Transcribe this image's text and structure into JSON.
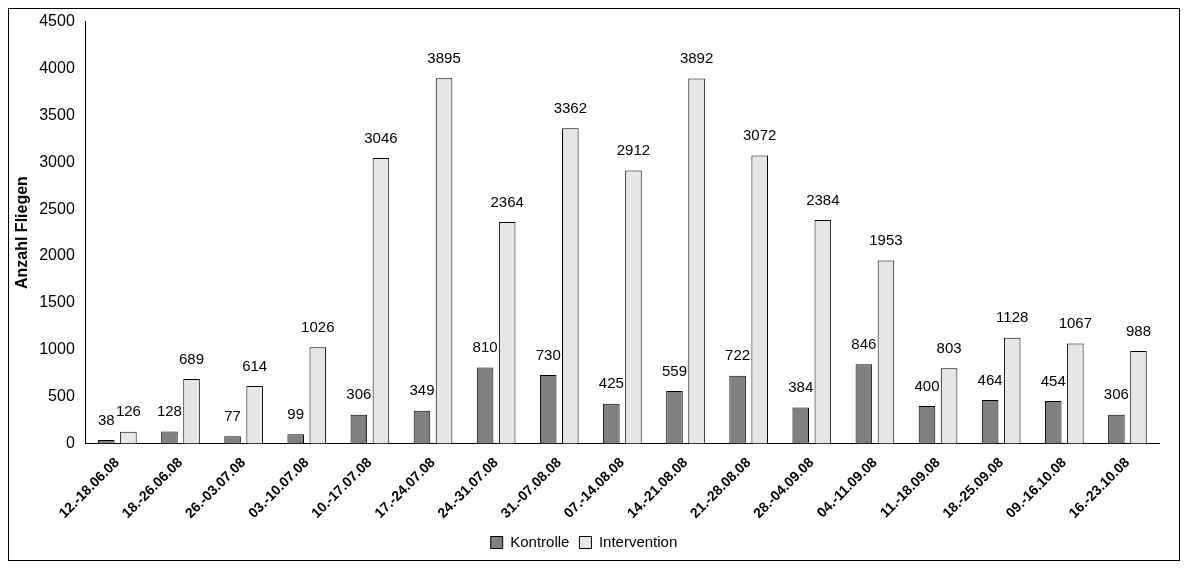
{
  "chart_data": {
    "type": "bar",
    "ylabel": "Anzahl Fliegen",
    "categories": [
      "12.-18.06.08",
      "18.-26.06.08",
      "26.-03.07.08",
      "03.-10.07.08",
      "10.-17.07.08",
      "17.-24.07.08",
      "24.-31.07.08",
      "31.-07.08.08",
      "07.-14.08.08",
      "14.-21.08.08",
      "21.-28.08.08",
      "28.-04.09.08",
      "04.-11.09.08",
      "11.-18.09.08",
      "18.-25.09.08",
      "09.-16.10.08",
      "16.-23.10.08"
    ],
    "series": [
      {
        "name": "Kontrolle",
        "color": "#808080",
        "values": [
          38,
          128,
          77,
          99,
          306,
          349,
          810,
          730,
          425,
          559,
          722,
          384,
          846,
          400,
          464,
          454,
          306
        ]
      },
      {
        "name": "Intervention",
        "color": "#e6e6e6",
        "values": [
          126,
          689,
          614,
          1026,
          3046,
          3895,
          2364,
          3362,
          2912,
          3892,
          3072,
          2384,
          1953,
          803,
          1128,
          1067,
          988
        ]
      }
    ],
    "ylim": [
      0,
      4500
    ],
    "yticks": [
      0,
      500,
      1000,
      1500,
      2000,
      2500,
      3000,
      3500,
      4000,
      4500
    ],
    "data_labels": true,
    "legend": "bottom",
    "grid": false
  }
}
